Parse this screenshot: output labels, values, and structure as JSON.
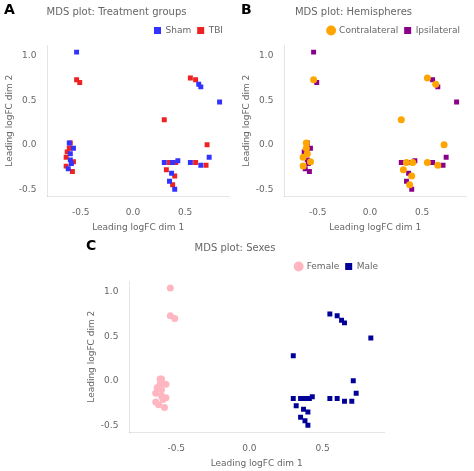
{
  "chart_data": [
    {
      "type": "scatter",
      "title": "MDS plot: Treatment groups",
      "annotations": [
        "A"
      ],
      "xlabel": "Leading logFC dim 1",
      "ylabel": "Leading logFC dim 2",
      "xlim": [
        -0.82,
        0.92
      ],
      "ylim": [
        -0.58,
        1.12
      ],
      "xticks": [
        -0.5,
        {
          "value": 0,
          "label": "0.0"
        },
        0.5
      ],
      "yticks": [
        -0.5,
        {
          "value": 0,
          "label": "0.0"
        },
        0.5,
        {
          "value": 1,
          "label": "1.0"
        }
      ],
      "grid": false,
      "legend": "upper right",
      "series": [
        {
          "name": "Sham",
          "color": "#3333FF",
          "marker": "square",
          "x": [
            -0.6,
            -0.57,
            -0.6,
            -0.59,
            -0.62,
            -0.61,
            -0.54,
            0.3,
            0.38,
            0.43,
            0.37,
            0.35,
            0.4,
            0.55,
            0.65,
            0.63,
            0.65,
            0.83,
            0.73
          ],
          "values": [
            -0.1,
            -0.04,
            -0.17,
            -0.21,
            -0.27,
            0.02,
            1.04,
            -0.2,
            -0.2,
            -0.18,
            -0.32,
            -0.41,
            -0.5,
            -0.2,
            -0.23,
            0.68,
            0.65,
            0.48,
            -0.14
          ]
        },
        {
          "name": "TBI",
          "color": "#EE2222",
          "marker": "square",
          "x": [
            -0.63,
            -0.61,
            -0.64,
            -0.57,
            -0.64,
            -0.6,
            -0.58,
            -0.54,
            -0.51,
            0.35,
            0.41,
            0.32,
            0.4,
            0.38,
            0.3,
            0.6,
            0.7,
            0.55,
            0.6,
            0.71
          ],
          "values": [
            -0.08,
            -0.04,
            -0.14,
            -0.19,
            -0.24,
            0.02,
            -0.3,
            0.73,
            0.7,
            -0.2,
            -0.2,
            -0.28,
            -0.35,
            -0.45,
            0.28,
            -0.2,
            -0.23,
            0.75,
            0.73,
            0.0
          ]
        }
      ]
    },
    {
      "type": "scatter",
      "title": "MDS plot: Hemispheres",
      "annotations": [
        "B"
      ],
      "xlabel": "Leading logFC dim 1",
      "ylabel": "Leading logFC dim 2",
      "xlim": [
        -0.82,
        0.92
      ],
      "ylim": [
        -0.58,
        1.12
      ],
      "xticks": [
        -0.5,
        {
          "value": 0,
          "label": "0.0"
        },
        0.5
      ],
      "yticks": [
        -0.5,
        {
          "value": 0,
          "label": "0.0"
        },
        0.5,
        {
          "value": 1,
          "label": "1.0"
        }
      ],
      "grid": false,
      "legend": "upper right",
      "series": [
        {
          "name": "Contralateral",
          "color": "#FFA500",
          "marker": "circle",
          "x": [
            -0.6,
            -0.61,
            -0.64,
            -0.57,
            -0.64,
            -0.61,
            -0.54,
            0.35,
            0.41,
            0.32,
            0.4,
            0.38,
            0.3,
            0.55,
            0.65,
            0.55,
            0.63,
            0.71
          ],
          "values": [
            -0.1,
            -0.04,
            -0.14,
            -0.19,
            -0.24,
            0.02,
            0.73,
            -0.2,
            -0.2,
            -0.28,
            -0.35,
            -0.45,
            0.28,
            -0.2,
            -0.23,
            0.75,
            0.68,
            0.0
          ]
        },
        {
          "name": "Ipsilateral",
          "color": "#8B008B",
          "marker": "square",
          "x": [
            -0.63,
            -0.57,
            -0.6,
            -0.59,
            -0.62,
            -0.6,
            -0.58,
            -0.54,
            -0.51,
            0.3,
            0.38,
            0.43,
            0.37,
            0.35,
            0.4,
            0.6,
            0.7,
            0.6,
            0.65,
            0.83,
            0.73
          ],
          "values": [
            -0.08,
            -0.04,
            -0.17,
            -0.21,
            -0.27,
            0.02,
            -0.3,
            1.04,
            0.7,
            -0.2,
            -0.2,
            -0.18,
            -0.32,
            -0.41,
            -0.5,
            -0.2,
            -0.23,
            0.73,
            0.65,
            0.48,
            -0.14
          ]
        }
      ]
    },
    {
      "type": "scatter",
      "title": "MDS plot: Sexes",
      "annotations": [
        "C"
      ],
      "xlabel": "Leading logFC dim 1",
      "ylabel": "Leading logFC dim 2",
      "xlim": [
        -0.82,
        0.92
      ],
      "ylim": [
        -0.58,
        1.12
      ],
      "xticks": [
        -0.5,
        {
          "value": 0,
          "label": "0.0"
        },
        0.5
      ],
      "yticks": [
        -0.5,
        {
          "value": 0,
          "label": "0.0"
        },
        0.5,
        {
          "value": 1,
          "label": "1.0"
        }
      ],
      "grid": false,
      "legend": "upper right",
      "series": [
        {
          "name": "Female",
          "color": "#FFB6C1",
          "marker": "circle",
          "x": [
            -0.6,
            -0.63,
            -0.57,
            -0.61,
            -0.64,
            -0.6,
            -0.57,
            -0.59,
            -0.64,
            -0.62,
            -0.61,
            -0.6,
            -0.58,
            -0.54,
            -0.54,
            -0.51
          ],
          "values": [
            -0.1,
            -0.08,
            -0.04,
            -0.04,
            -0.14,
            -0.17,
            -0.19,
            -0.21,
            -0.24,
            -0.27,
            0.02,
            0.02,
            -0.3,
            1.04,
            0.73,
            0.7
          ]
        },
        {
          "name": "Male",
          "color": "#000099",
          "marker": "square",
          "x": [
            0.3,
            0.35,
            0.38,
            0.41,
            0.43,
            0.32,
            0.37,
            0.4,
            0.35,
            0.38,
            0.4,
            0.3,
            0.55,
            0.6,
            0.65,
            0.7,
            0.55,
            0.6,
            0.63,
            0.65,
            0.83,
            0.71,
            0.73
          ],
          "values": [
            -0.2,
            -0.2,
            -0.2,
            -0.2,
            -0.18,
            -0.28,
            -0.32,
            -0.35,
            -0.41,
            -0.45,
            -0.5,
            0.28,
            -0.2,
            -0.2,
            -0.23,
            -0.23,
            0.75,
            0.73,
            0.68,
            0.65,
            0.48,
            0.0,
            -0.14
          ]
        }
      ]
    }
  ]
}
